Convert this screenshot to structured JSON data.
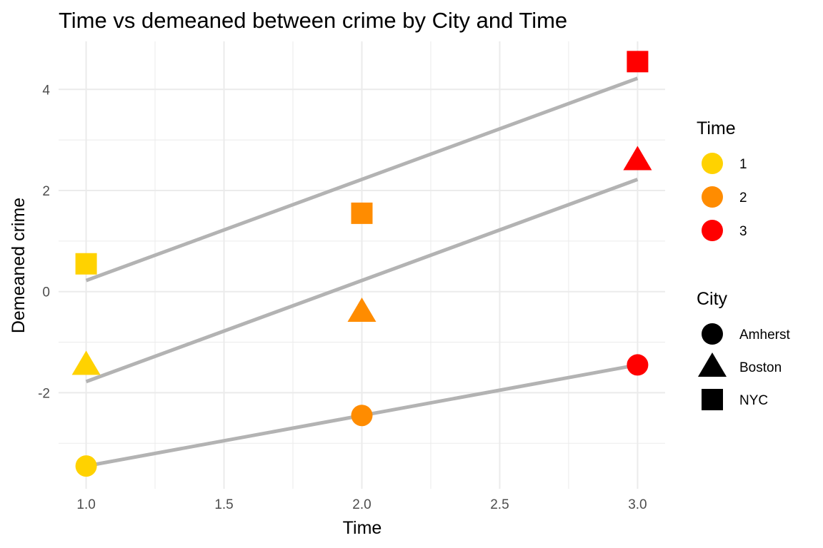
{
  "chart_data": {
    "type": "scatter",
    "title": "Time vs demeaned between crime by City and Time",
    "xlabel": "Time",
    "ylabel": "Demeaned crime",
    "xlim": [
      0.9,
      3.1
    ],
    "ylim": [
      -3.9,
      4.95
    ],
    "x_ticks": [
      1.0,
      1.5,
      2.0,
      2.5,
      3.0
    ],
    "x_tick_labels": [
      "1.0",
      "1.5",
      "2.0",
      "2.5",
      "3.0"
    ],
    "y_ticks": [
      -2,
      0,
      2,
      4
    ],
    "y_tick_labels": [
      "-2",
      "0",
      "2",
      "4"
    ],
    "grid": true,
    "legend_placement": "right",
    "color_legend": {
      "title": "Time",
      "entries": [
        {
          "label": "1",
          "color": "#FFD200"
        },
        {
          "label": "2",
          "color": "#FF8C00"
        },
        {
          "label": "3",
          "color": "#FF0000"
        }
      ]
    },
    "shape_legend": {
      "title": "City",
      "entries": [
        {
          "label": "Amherst",
          "shape": "circle"
        },
        {
          "label": "Boston",
          "shape": "triangle"
        },
        {
          "label": "NYC",
          "shape": "square"
        }
      ]
    },
    "points": [
      {
        "city": "Amherst",
        "time": "1",
        "x": 1,
        "y": -3.45
      },
      {
        "city": "Amherst",
        "time": "2",
        "x": 2,
        "y": -2.45
      },
      {
        "city": "Amherst",
        "time": "3",
        "x": 3,
        "y": -1.45
      },
      {
        "city": "Boston",
        "time": "1",
        "x": 1,
        "y": -1.45
      },
      {
        "city": "Boston",
        "time": "2",
        "x": 2,
        "y": -0.4
      },
      {
        "city": "Boston",
        "time": "3",
        "x": 3,
        "y": 2.6
      },
      {
        "city": "NYC",
        "time": "1",
        "x": 1,
        "y": 0.55
      },
      {
        "city": "NYC",
        "time": "2",
        "x": 2,
        "y": 1.55
      },
      {
        "city": "NYC",
        "time": "3",
        "x": 3,
        "y": 4.55
      }
    ],
    "trend_lines": [
      {
        "city": "Amherst",
        "x": [
          1,
          3
        ],
        "y": [
          -3.45,
          -1.45
        ]
      },
      {
        "city": "Boston",
        "x": [
          1,
          3
        ],
        "y": [
          -1.78,
          2.22
        ]
      },
      {
        "city": "NYC",
        "x": [
          1,
          3
        ],
        "y": [
          0.22,
          4.22
        ]
      }
    ],
    "trend_color": "#B3B3B3"
  }
}
